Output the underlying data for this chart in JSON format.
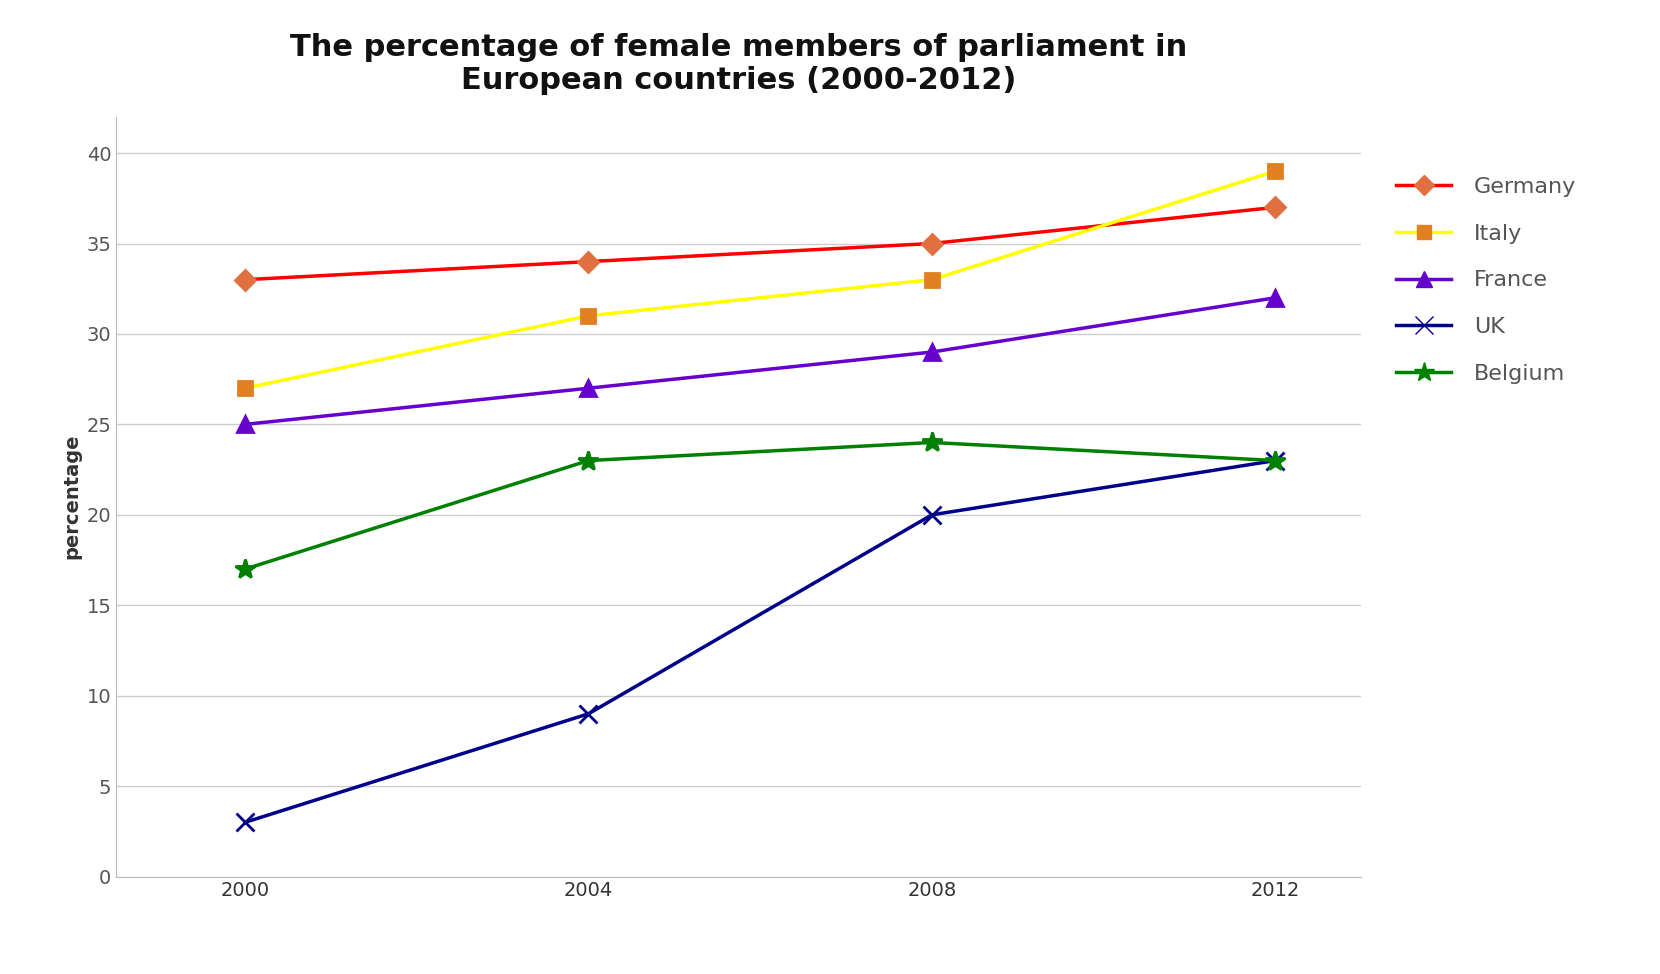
{
  "title": "The percentage of female members of parliament in\nEuropean countries (2000-2012)",
  "ylabel": "percentage",
  "years": [
    2000,
    2004,
    2008,
    2012
  ],
  "series": [
    {
      "label": "Germany",
      "values": [
        33,
        34,
        35,
        37
      ],
      "line_color": "#FF0000",
      "marker_color": "#E07040",
      "marker": "D",
      "markersize": 10,
      "linewidth": 2.5
    },
    {
      "label": "Italy",
      "values": [
        27,
        31,
        33,
        39
      ],
      "line_color": "#FFFF00",
      "marker_color": "#E08020",
      "marker": "s",
      "markersize": 10,
      "linewidth": 2.5
    },
    {
      "label": "France",
      "values": [
        25,
        27,
        29,
        32
      ],
      "line_color": "#6600CC",
      "marker_color": "#6600CC",
      "marker": "^",
      "markersize": 11,
      "linewidth": 2.5
    },
    {
      "label": "UK",
      "values": [
        3,
        9,
        20,
        23
      ],
      "line_color": "#00008B",
      "marker_color": "#00008B",
      "marker": "x",
      "markersize": 13,
      "linewidth": 2.5
    },
    {
      "label": "Belgium",
      "values": [
        17,
        23,
        24,
        23
      ],
      "line_color": "#008000",
      "marker_color": "#008000",
      "marker": "*",
      "markersize": 15,
      "linewidth": 2.5
    }
  ],
  "ylim": [
    0,
    42
  ],
  "yticks": [
    0,
    5,
    10,
    15,
    20,
    25,
    30,
    35,
    40
  ],
  "xticks": [
    2000,
    2004,
    2008,
    2012
  ],
  "background_color": "#FFFFFF",
  "grid_color": "#CCCCCC",
  "title_fontsize": 22,
  "axis_label_fontsize": 14,
  "tick_fontsize": 14,
  "legend_fontsize": 16,
  "legend_text_color": "#555555"
}
